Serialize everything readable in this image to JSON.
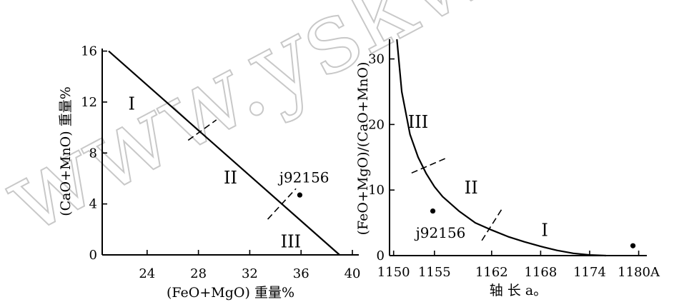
{
  "watermark": {
    "text": "www.yskw.ac"
  },
  "chart_data": [
    {
      "type": "line",
      "title": "",
      "xlabel": "(FeO+MgO) 重量%",
      "ylabel": "(CaO+MnO) 重量%",
      "xlim": [
        20.5,
        40.5
      ],
      "ylim": [
        0,
        16.2
      ],
      "xticks": [
        24,
        28,
        32,
        36,
        40
      ],
      "yticks": [
        0,
        4,
        8,
        12,
        16
      ],
      "grid": false,
      "series": [
        {
          "x": [
            21,
            39
          ],
          "y": [
            16,
            0
          ]
        }
      ],
      "region_labels": [
        {
          "text": "I",
          "x": 22.8,
          "y": 11.4
        },
        {
          "text": "II",
          "x": 30.5,
          "y": 5.6
        },
        {
          "text": "III",
          "x": 35.2,
          "y": 0.6
        }
      ],
      "boundary_marks": [
        {
          "x1": 27.2,
          "y1": 9.0,
          "x2": 29.4,
          "y2": 10.6
        },
        {
          "x1": 33.4,
          "y1": 2.8,
          "x2": 35.6,
          "y2": 5.2
        }
      ],
      "points": [
        {
          "label": "j92156",
          "x": 35.9,
          "y": 4.7,
          "label_x": 34.3,
          "label_y": 5.7
        }
      ]
    },
    {
      "type": "line",
      "title": "",
      "xlabel": "轴 长 a。",
      "ylabel": "(FeO+MgO)/(CaO+MnO)",
      "xlim": [
        1149.5,
        1181
      ],
      "ylim": [
        0,
        33
      ],
      "xticks": [
        1150,
        1155,
        1162,
        1168,
        1174,
        1180
      ],
      "xtick_labels": [
        "1150",
        "1155",
        "1162",
        "1168",
        "1174",
        "1180A"
      ],
      "yticks": [
        0,
        10,
        20,
        30
      ],
      "grid": false,
      "series": [
        {
          "x": [
            1150.4,
            1151,
            1152,
            1153,
            1154,
            1155,
            1156,
            1158,
            1160,
            1162,
            1164,
            1166,
            1168,
            1170,
            1172,
            1174,
            1176
          ],
          "y": [
            33,
            25,
            18.5,
            15,
            12.5,
            10.5,
            9,
            6.8,
            5.0,
            3.9,
            2.9,
            2.1,
            1.4,
            0.8,
            0.35,
            0.1,
            0
          ]
        }
      ],
      "region_labels": [
        {
          "text": "III",
          "x": 1153,
          "y": 19.5
        },
        {
          "text": "II",
          "x": 1159.5,
          "y": 9.5
        },
        {
          "text": "I",
          "x": 1168.5,
          "y": 3.0
        }
      ],
      "boundary_marks": [
        {
          "x1": 1152.2,
          "y1": 12.6,
          "x2": 1156.3,
          "y2": 14.8
        },
        {
          "x1": 1160.8,
          "y1": 2.3,
          "x2": 1163.2,
          "y2": 7.0
        }
      ],
      "points": [
        {
          "label": "j92156",
          "x": 1154.8,
          "y": 6.8,
          "label_x": 1152.7,
          "label_y": 2.7
        },
        {
          "label": "",
          "x": 1179.3,
          "y": 1.5
        }
      ]
    }
  ]
}
